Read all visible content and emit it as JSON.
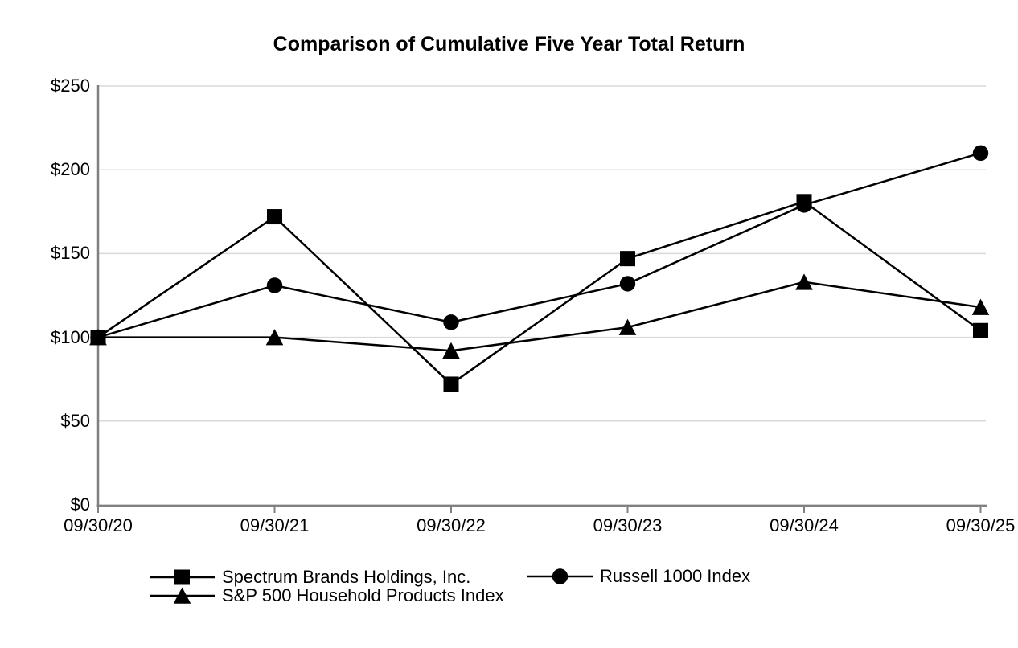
{
  "chart_data": {
    "type": "line",
    "title": "Comparison of Cumulative Five Year Total Return",
    "categories": [
      "09/30/20",
      "09/30/21",
      "09/30/22",
      "09/30/23",
      "09/30/24",
      "09/30/25"
    ],
    "series": [
      {
        "name": "Spectrum Brands Holdings, Inc.",
        "marker": "square",
        "color": "#000000",
        "values": [
          100,
          172,
          72,
          147,
          181,
          104
        ]
      },
      {
        "name": "Russell 1000 Index",
        "marker": "circle",
        "color": "#000000",
        "values": [
          100,
          131,
          109,
          132,
          179,
          210
        ]
      },
      {
        "name": "S&P 500 Household Products Index",
        "marker": "triangle",
        "color": "#000000",
        "values": [
          100,
          100,
          92,
          106,
          133,
          118
        ]
      }
    ],
    "y_ticks": [
      {
        "label": "$0",
        "value": 0
      },
      {
        "label": "$50",
        "value": 50
      },
      {
        "label": "$100",
        "value": 100
      },
      {
        "label": "$150",
        "value": 150
      },
      {
        "label": "$200",
        "value": 200
      },
      {
        "label": "$250",
        "value": 250
      }
    ],
    "ylim": [
      0,
      250
    ],
    "xlabel": "",
    "ylabel": "",
    "grid": "horizontal",
    "legend_position": "bottom",
    "colors": {
      "line": "#000000",
      "marker": "#000000",
      "gridline": "#d9d9d9",
      "axis": "#808080",
      "background": "#ffffff",
      "text": "#000000"
    }
  }
}
